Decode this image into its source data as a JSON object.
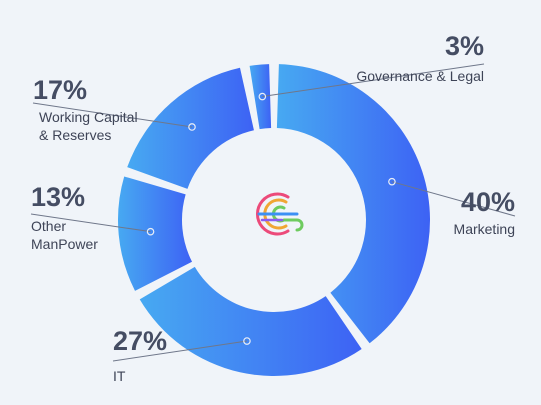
{
  "chart_data": {
    "type": "donut",
    "title": "",
    "slices": [
      {
        "label": "Marketing",
        "value": 40,
        "display": "40%",
        "label_lines": [
          "Marketing"
        ]
      },
      {
        "label": "IT",
        "value": 27,
        "display": "27%",
        "label_lines": [
          "IT"
        ]
      },
      {
        "label": "Other ManPower",
        "value": 13,
        "display": "13%",
        "label_lines": [
          "Other",
          "ManPower"
        ]
      },
      {
        "label": "Working Capital & Reserves",
        "value": 17,
        "display": "17%",
        "label_lines": [
          "Working Capital",
          "& Reserves"
        ]
      },
      {
        "label": "Governance & Legal",
        "value": 3,
        "display": "3%",
        "label_lines": [
          "Governance & Legal"
        ]
      }
    ],
    "start_angle_deg": 0,
    "direction": "clockwise",
    "legend": "none",
    "colors": {
      "gradient_start": "#3d62f4",
      "gradient_end": "#47a9f2"
    }
  },
  "center_logo": {
    "icon": "brand-logo-icon"
  }
}
